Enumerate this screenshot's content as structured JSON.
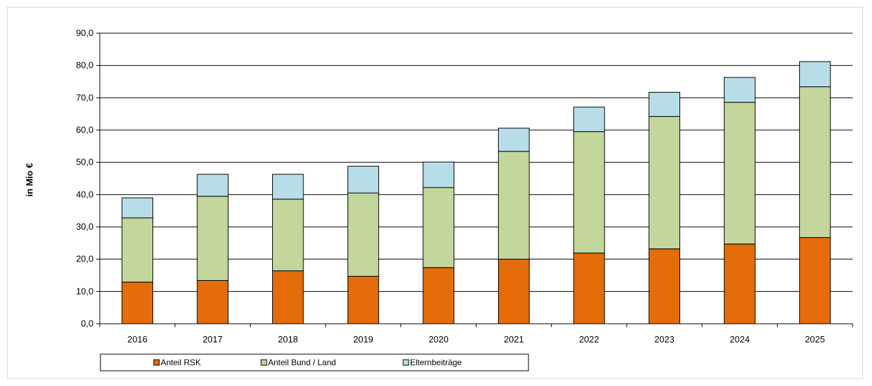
{
  "chart_data": {
    "type": "bar",
    "stacked": true,
    "title": "",
    "xlabel": "",
    "ylabel": "in Mio €",
    "ylim": [
      0,
      90
    ],
    "ytick_step": 10,
    "grid": true,
    "legend_position": "bottom",
    "categories": [
      "2016",
      "2017",
      "2018",
      "2019",
      "2020",
      "2021",
      "2022",
      "2023",
      "2024",
      "2025"
    ],
    "series": [
      {
        "name": "Anteil RSK",
        "color": "#e46c0a",
        "values": [
          12.9,
          13.4,
          16.4,
          14.7,
          17.4,
          20.0,
          21.9,
          23.2,
          24.7,
          26.7
        ]
      },
      {
        "name": "Anteil Bund / Land",
        "color": "#c3d69b",
        "values": [
          19.9,
          26.1,
          22.2,
          25.8,
          24.8,
          33.4,
          37.6,
          41.0,
          43.9,
          46.7
        ]
      },
      {
        "name": "Elternbeiträge",
        "color": "#b7dee8",
        "values": [
          6.2,
          6.8,
          7.7,
          8.3,
          7.9,
          7.2,
          7.6,
          7.5,
          7.7,
          7.8
        ]
      }
    ]
  }
}
